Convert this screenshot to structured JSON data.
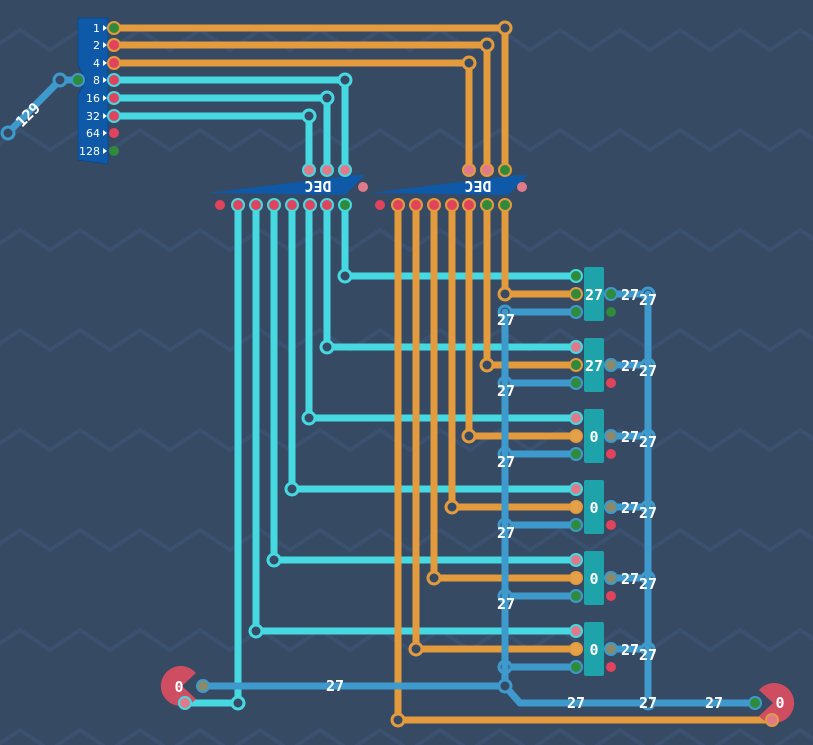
{
  "input": {
    "value": "129",
    "bits": [
      "1",
      "2",
      "4",
      "8",
      "16",
      "32",
      "64",
      "128"
    ],
    "bit_states": [
      "on",
      "off",
      "off",
      "off",
      "off",
      "off",
      "off",
      "on"
    ]
  },
  "decoders": [
    {
      "label": "DEC"
    },
    {
      "label": "DEC"
    }
  ],
  "registers": [
    {
      "value": "27",
      "output": "27",
      "bus_label": "27",
      "load_label": "27"
    },
    {
      "value": "27",
      "output": "27",
      "bus_label": "27",
      "load_label": "27"
    },
    {
      "value": "0",
      "output": "27",
      "bus_label": "27",
      "load_label": "27"
    },
    {
      "value": "0",
      "output": "27",
      "bus_label": "27",
      "load_label": "27"
    },
    {
      "value": "0",
      "output": "27",
      "bus_label": "27",
      "load_label": "27"
    },
    {
      "value": "0",
      "output": "27",
      "bus_label": "27",
      "load_label": "27"
    }
  ],
  "register_enabled": [
    true,
    false,
    false,
    false,
    false,
    false
  ],
  "left_io": {
    "value": "0"
  },
  "right_io": {
    "value": "0"
  },
  "wire_labels": {
    "input_bus": "27",
    "out_a": "27",
    "out_b": "27",
    "out_c": "27"
  },
  "colors": {
    "background": "#364a63",
    "orange_wire": "#e39b3d",
    "cyan_wire": "#46d9e1",
    "blue_wire": "#3e9acd",
    "register": "#1fa3ab",
    "pin_off": "#e0445c",
    "pin_on": "#2f8a3b",
    "io": "#cf4d60"
  }
}
